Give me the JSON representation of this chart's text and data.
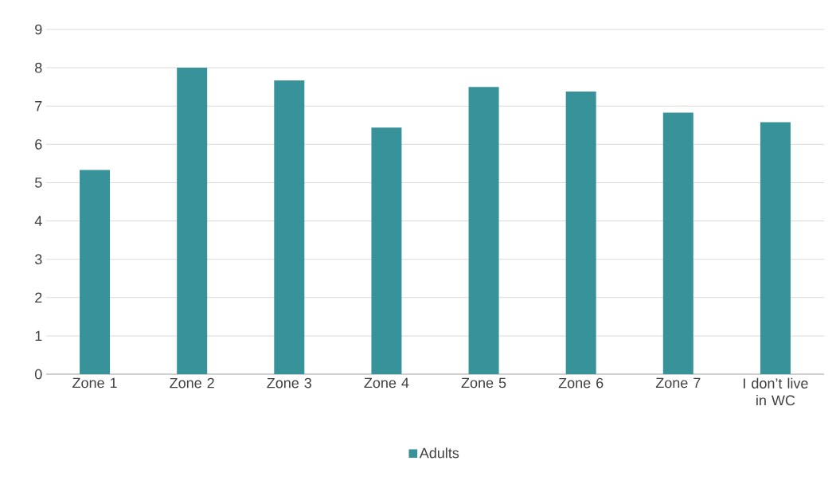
{
  "chart_data": {
    "type": "bar",
    "categories": [
      "Zone 1",
      "Zone 2",
      "Zone 3",
      "Zone 4",
      "Zone 5",
      "Zone 6",
      "Zone 7",
      "I don’t live in WC"
    ],
    "series": [
      {
        "name": "Adults",
        "color": "#379399",
        "values": [
          5.33,
          8.0,
          7.67,
          6.44,
          7.5,
          7.38,
          6.83,
          6.58
        ]
      }
    ],
    "ylim": [
      0,
      9
    ],
    "yticks": [
      0,
      1,
      2,
      3,
      4,
      5,
      6,
      7,
      8,
      9
    ],
    "grid": "y",
    "legend": "bottom"
  }
}
